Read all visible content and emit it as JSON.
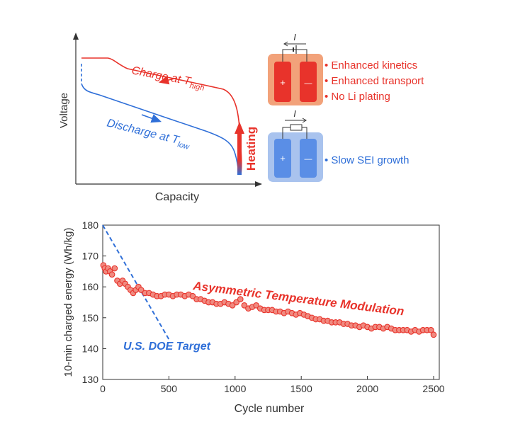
{
  "colors": {
    "charge": "#e8332b",
    "discharge": "#2f6fd8",
    "axis": "#333333",
    "hot_cell": "#f2a27a",
    "cold_cell": "#a9c3ee",
    "point_fill": "#f08a80"
  },
  "top": {
    "charge_label": "Charge  at T",
    "charge_sub": "high",
    "discharge_label": "Discharge at T",
    "discharge_sub": "low",
    "heating_label": "Heating",
    "xlabel": "Capacity",
    "ylabel": "Voltage",
    "current_symbol": "I",
    "plus": "+",
    "minus": "—",
    "hot_features": [
      "Enhanced kinetics",
      "Enhanced transport",
      "No Li plating"
    ],
    "cold_features": [
      "Slow SEI growth"
    ]
  },
  "chart_data": [
    {
      "type": "line",
      "title": "",
      "xlabel": "Capacity",
      "ylabel": "Voltage",
      "series": [
        {
          "name": "Charge at T_high",
          "direction": "right-to-left",
          "color": "#e8332b"
        },
        {
          "name": "Discharge at T_low",
          "direction": "left-to-right",
          "color": "#2f6fd8"
        }
      ],
      "annotations": [
        "Heating"
      ]
    },
    {
      "type": "scatter",
      "title": "",
      "xlabel": "Cycle number",
      "ylabel": "10-min charged energy (Wh/kg)",
      "xlim": [
        0,
        2500
      ],
      "ylim": [
        130,
        180
      ],
      "xticks": [
        0,
        500,
        1000,
        1500,
        2000,
        2500
      ],
      "yticks": [
        130,
        140,
        150,
        160,
        170,
        180
      ],
      "series": [
        {
          "name": "Asymmetric Temperature Modulation",
          "color": "#e8332b",
          "x": [
            5,
            15,
            25,
            40,
            55,
            70,
            90,
            110,
            130,
            150,
            170,
            190,
            210,
            230,
            250,
            270,
            290,
            320,
            350,
            380,
            410,
            440,
            470,
            500,
            530,
            560,
            590,
            620,
            650,
            680,
            710,
            740,
            770,
            800,
            830,
            860,
            890,
            920,
            950,
            980,
            1010,
            1040,
            1070,
            1100,
            1130,
            1160,
            1190,
            1220,
            1250,
            1280,
            1310,
            1340,
            1370,
            1400,
            1430,
            1460,
            1490,
            1520,
            1550,
            1580,
            1610,
            1640,
            1670,
            1700,
            1730,
            1760,
            1790,
            1820,
            1850,
            1880,
            1910,
            1940,
            1970,
            2000,
            2030,
            2060,
            2090,
            2120,
            2150,
            2180,
            2210,
            2240,
            2270,
            2300,
            2330,
            2360,
            2390,
            2420,
            2450,
            2480,
            2500
          ],
          "y": [
            167,
            166,
            165,
            166,
            165,
            164,
            166,
            162,
            161,
            162,
            161,
            160,
            159,
            158,
            159,
            160,
            159,
            158,
            158,
            157.5,
            157,
            157,
            157.5,
            157.5,
            157,
            157.5,
            157.5,
            157,
            157.5,
            157,
            156,
            156,
            155.5,
            155,
            155,
            154.5,
            154.5,
            155,
            154.5,
            154,
            155,
            156,
            154,
            153,
            153.5,
            154,
            153,
            152.5,
            152.5,
            152.5,
            152,
            152,
            151.5,
            152,
            151.5,
            151,
            151.5,
            151,
            150.5,
            150,
            149.5,
            149.5,
            149,
            149,
            148.5,
            148.5,
            148.5,
            148,
            148,
            147.5,
            147.5,
            147,
            147.5,
            147,
            146.5,
            147,
            147,
            146.5,
            147,
            146.5,
            146,
            146,
            146,
            146,
            145.5,
            146,
            145.5,
            146,
            146,
            146,
            144.5
          ]
        },
        {
          "name": "U.S. DOE Target",
          "color": "#2f6fd8",
          "style": "dashed",
          "x": [
            0,
            500
          ],
          "y": [
            180,
            143
          ]
        }
      ],
      "annotations": [
        "Asymmetric Temperature Modulation",
        "U.S. DOE Target"
      ]
    }
  ]
}
